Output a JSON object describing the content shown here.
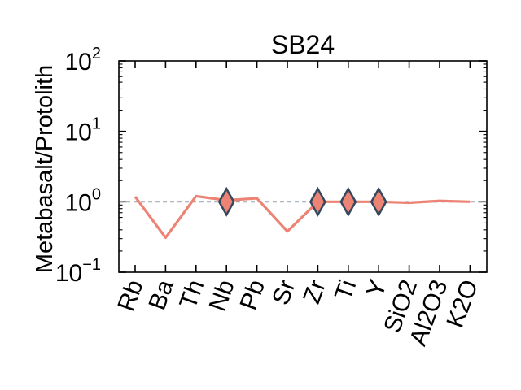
{
  "chart_data": {
    "type": "line",
    "title": "SB24",
    "xlabel": "",
    "ylabel": "Metabasalt/Protolith",
    "yscale": "log",
    "ylim": [
      0.1,
      100
    ],
    "y_tick_labels": [
      {
        "base": "10",
        "exp": "−1"
      },
      {
        "base": "10",
        "exp": "0"
      },
      {
        "base": "10",
        "exp": "1"
      },
      {
        "base": "10",
        "exp": "2"
      }
    ],
    "categories": [
      "Rb",
      "Ba",
      "Th",
      "Nb",
      "Pb",
      "Sr",
      "Zr",
      "Ti",
      "Y",
      "SiO2",
      "Al2O3",
      "K2O"
    ],
    "series": [
      {
        "values": [
          1.18,
          0.31,
          1.2,
          1.05,
          1.12,
          0.38,
          1.0,
          1.0,
          1.0,
          0.97,
          1.03,
          1.0
        ],
        "color": "#ec8374"
      }
    ],
    "immobile_markers": {
      "categories": [
        "Nb",
        "Zr",
        "Ti",
        "Y"
      ],
      "value": 1.0,
      "fill": "#ec8374",
      "edge": "#34495e",
      "shape": "diamond"
    },
    "reference_line": {
      "value": 1.0,
      "style": "dashed",
      "color": "#34495e"
    },
    "grid": false,
    "legend": "none"
  }
}
